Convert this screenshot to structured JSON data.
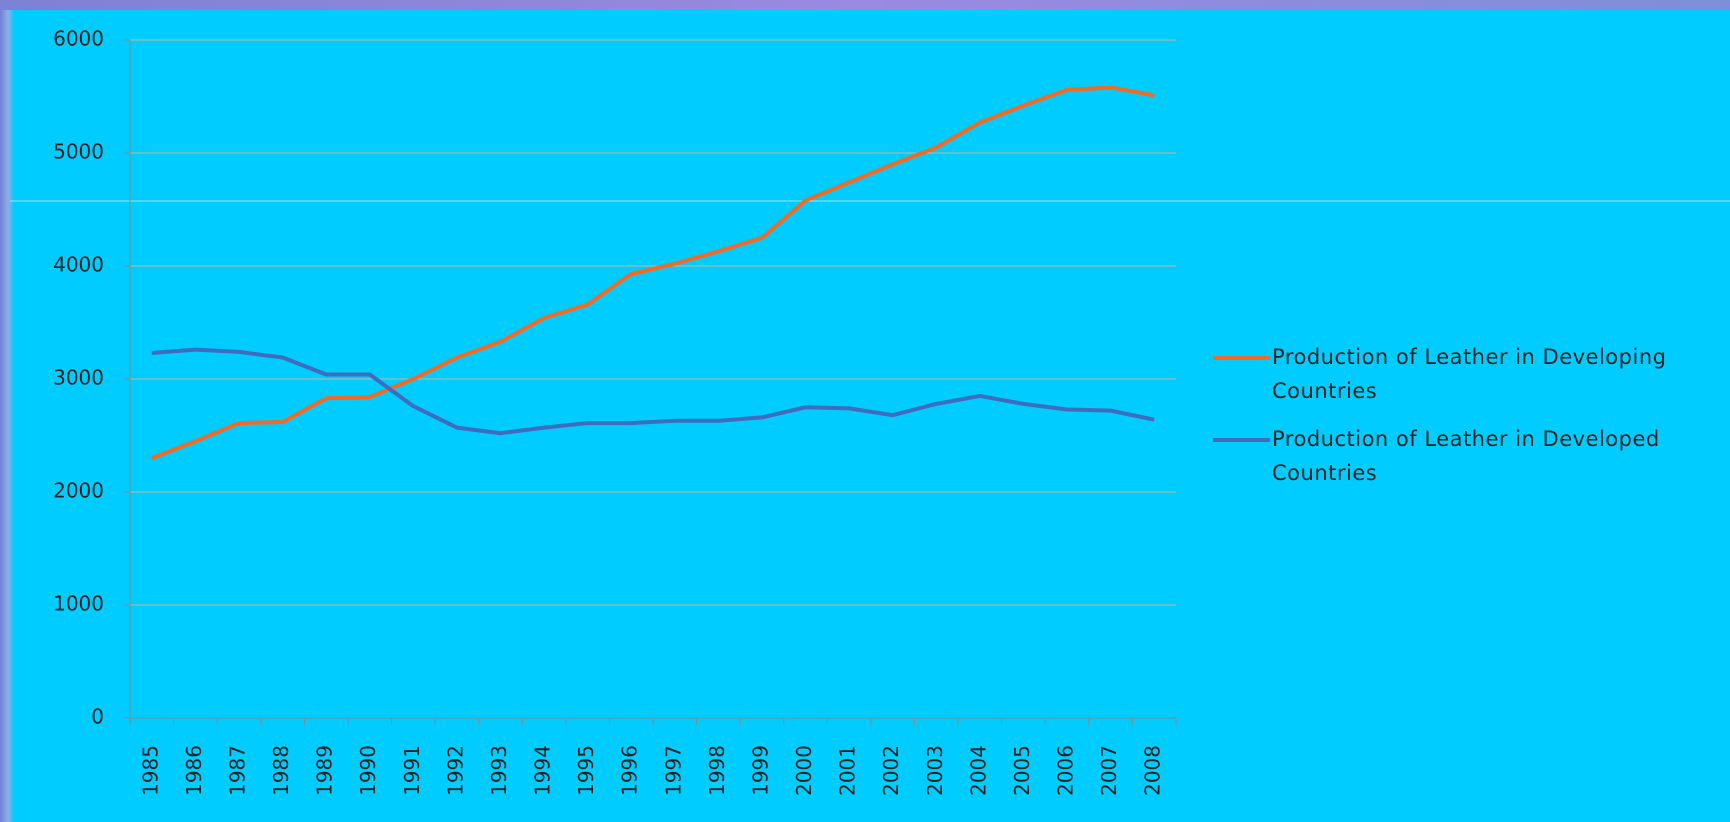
{
  "chart_data": {
    "type": "line",
    "categories": [
      "1985",
      "1986",
      "1987",
      "1988",
      "1989",
      "1990",
      "1991",
      "1992",
      "1993",
      "1994",
      "1995",
      "1996",
      "1997",
      "1998",
      "1999",
      "2000",
      "2001",
      "2002",
      "2003",
      "2004",
      "2005",
      "2006",
      "2007",
      "2008"
    ],
    "series": [
      {
        "name": "Production of Leather in Developing Countries",
        "color": "#f26a24",
        "values": [
          2300,
          2450,
          2610,
          2620,
          2830,
          2840,
          3000,
          3190,
          3330,
          3540,
          3660,
          3930,
          4020,
          4130,
          4250,
          4580,
          4740,
          4900,
          5050,
          5270,
          5420,
          5560,
          5580,
          5510
        ]
      },
      {
        "name": "Production of Leather in Developed Countries",
        "color": "#3f6cbf",
        "values": [
          3230,
          3260,
          3240,
          3190,
          3040,
          3040,
          2760,
          2570,
          2520,
          2570,
          2610,
          2610,
          2630,
          2630,
          2660,
          2750,
          2740,
          2680,
          2780,
          2850,
          2780,
          2730,
          2720,
          2640
        ]
      }
    ],
    "ylim": [
      0,
      6000
    ],
    "yticks": [
      0,
      1000,
      2000,
      3000,
      4000,
      5000,
      6000
    ],
    "grid": true,
    "legend": "right"
  }
}
